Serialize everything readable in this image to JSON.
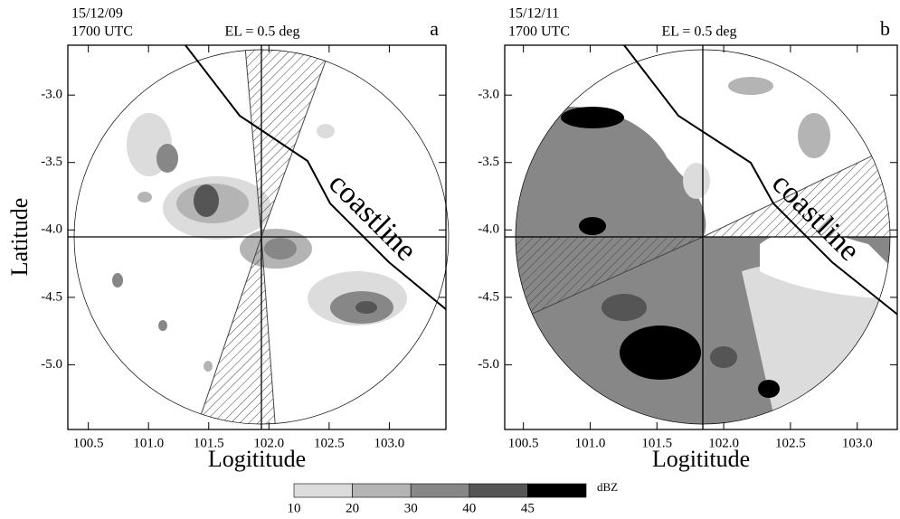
{
  "chart_data": [
    {
      "type": "radar-ppi",
      "date": "15/12/09",
      "time": "1700 UTC",
      "title": "EL =  0.5 deg",
      "panel": "a",
      "xlabel": "Logititude",
      "ylabel": "Latitude",
      "annotation": "coastline",
      "xlim": [
        100.33,
        103.47
      ],
      "ylim": [
        -5.48,
        -2.63
      ],
      "xticks": [
        100.5,
        {
          "value": 101,
          "label": "101.0"
        },
        101.5,
        {
          "value": 102,
          "label": "102.0"
        },
        102.5,
        {
          "value": 103,
          "label": "103.0"
        }
      ],
      "yticks": [
        {
          "value": -3,
          "label": "-3.0"
        },
        -3.5,
        {
          "value": -4,
          "label": "-4.0"
        },
        -4.5,
        {
          "value": -5,
          "label": "-5.0"
        }
      ]
    },
    {
      "type": "radar-ppi",
      "date": "15/12/11",
      "time": "1700 UTC",
      "title": "EL =  0.5 deg",
      "panel": "b",
      "xlabel": "Logititude",
      "annotation": "coastline",
      "xlim": [
        100.36,
        103.3
      ],
      "ylim": [
        -5.48,
        -2.63
      ],
      "xticks": [
        100.5,
        {
          "value": 101,
          "label": "101.0"
        },
        101.5,
        {
          "value": 102,
          "label": "102.0"
        },
        102.5,
        {
          "value": 103,
          "label": "103.0"
        }
      ],
      "yticks": [
        {
          "value": -3,
          "label": "-3.0"
        },
        -3.5,
        {
          "value": -4,
          "label": "-4.0"
        },
        -4.5,
        {
          "value": -5,
          "label": "-5.0"
        }
      ]
    }
  ],
  "colorbar": {
    "unit": "dBZ",
    "ticks": [
      10,
      20,
      30,
      40,
      45
    ],
    "colors": [
      "#dcdcdc",
      "#b4b4b4",
      "#878787",
      "#555555",
      "#000000"
    ]
  }
}
